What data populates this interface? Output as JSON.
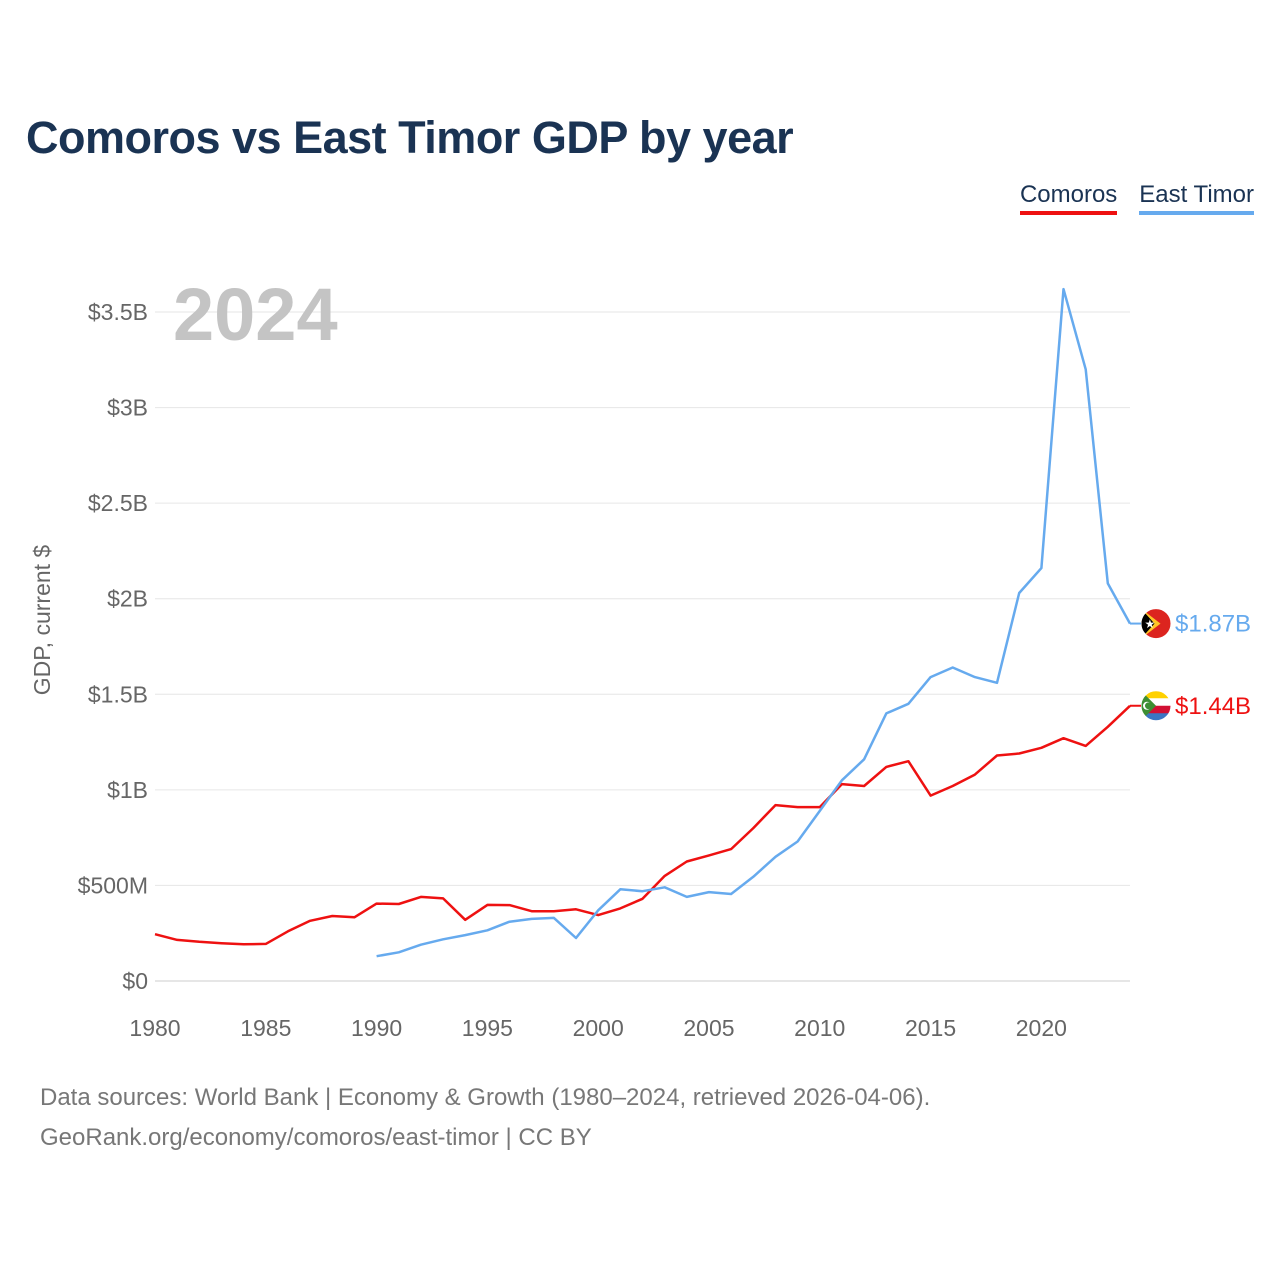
{
  "title": "Comoros vs East Timor GDP by year",
  "legend": {
    "comoros": "Comoros",
    "east_timor": "East Timor"
  },
  "source": {
    "line1": "Data sources: World Bank | Economy & Growth (1980–2024, retrieved 2026-04-06).",
    "line2": "GeoRank.org/economy/comoros/east-timor | CC BY"
  },
  "chart_data": {
    "type": "line",
    "title": "Comoros vs East Timor GDP by year",
    "ylabel": "GDP, current $",
    "xlabel": "",
    "current_year_label": "2024",
    "xlim": [
      1980,
      2024
    ],
    "ylim": [
      0,
      3.6
    ],
    "y_unit": "billion USD",
    "x_ticks": [
      "1980",
      "1985",
      "1990",
      "1995",
      "2000",
      "2005",
      "2010",
      "2015",
      "2020"
    ],
    "y_ticks": [
      {
        "value": 0,
        "label": "$0"
      },
      {
        "value": 0.5,
        "label": "$500M"
      },
      {
        "value": 1,
        "label": "$1B"
      },
      {
        "value": 1.5,
        "label": "$1.5B"
      },
      {
        "value": 2,
        "label": "$2B"
      },
      {
        "value": 2.5,
        "label": "$2.5B"
      },
      {
        "value": 3,
        "label": "$3B"
      },
      {
        "value": 3.5,
        "label": "$3.5B"
      }
    ],
    "grid": true,
    "series": [
      {
        "name": "Comoros",
        "color": "#ee1111",
        "end_label": "$1.44B",
        "flag_icon": "comoros-flag-icon",
        "x": [
          1980,
          1981,
          1982,
          1983,
          1984,
          1985,
          1986,
          1987,
          1988,
          1989,
          1990,
          1991,
          1992,
          1993,
          1994,
          1995,
          1996,
          1997,
          1998,
          1999,
          2000,
          2001,
          2002,
          2003,
          2004,
          2005,
          2006,
          2007,
          2008,
          2009,
          2010,
          2011,
          2012,
          2013,
          2014,
          2015,
          2016,
          2017,
          2018,
          2019,
          2020,
          2021,
          2022,
          2023,
          2024
        ],
        "values": [
          0.245,
          0.215,
          0.205,
          0.198,
          0.192,
          0.194,
          0.26,
          0.315,
          0.34,
          0.333,
          0.405,
          0.403,
          0.44,
          0.432,
          0.32,
          0.398,
          0.397,
          0.365,
          0.365,
          0.375,
          0.345,
          0.38,
          0.43,
          0.55,
          0.625,
          0.657,
          0.69,
          0.8,
          0.92,
          0.91,
          0.91,
          1.03,
          1.02,
          1.12,
          1.15,
          0.97,
          1.02,
          1.08,
          1.18,
          1.19,
          1.22,
          1.27,
          1.23,
          1.33,
          1.44
        ]
      },
      {
        "name": "East Timor",
        "color": "#66aaee",
        "end_label": "$1.87B",
        "flag_icon": "east-timor-flag-icon",
        "x": [
          1990,
          1991,
          1992,
          1993,
          1994,
          1995,
          1996,
          1997,
          1998,
          1999,
          2000,
          2001,
          2002,
          2003,
          2004,
          2005,
          2006,
          2007,
          2008,
          2009,
          2010,
          2011,
          2012,
          2013,
          2014,
          2015,
          2016,
          2017,
          2018,
          2019,
          2020,
          2021,
          2022,
          2023,
          2024
        ],
        "values": [
          0.13,
          0.15,
          0.19,
          0.218,
          0.24,
          0.265,
          0.31,
          0.325,
          0.33,
          0.225,
          0.37,
          0.48,
          0.47,
          0.49,
          0.44,
          0.465,
          0.455,
          0.545,
          0.65,
          0.73,
          0.89,
          1.05,
          1.16,
          1.4,
          1.45,
          1.59,
          1.64,
          1.59,
          1.56,
          2.03,
          2.16,
          3.62,
          3.2,
          2.08,
          1.87
        ]
      }
    ]
  }
}
